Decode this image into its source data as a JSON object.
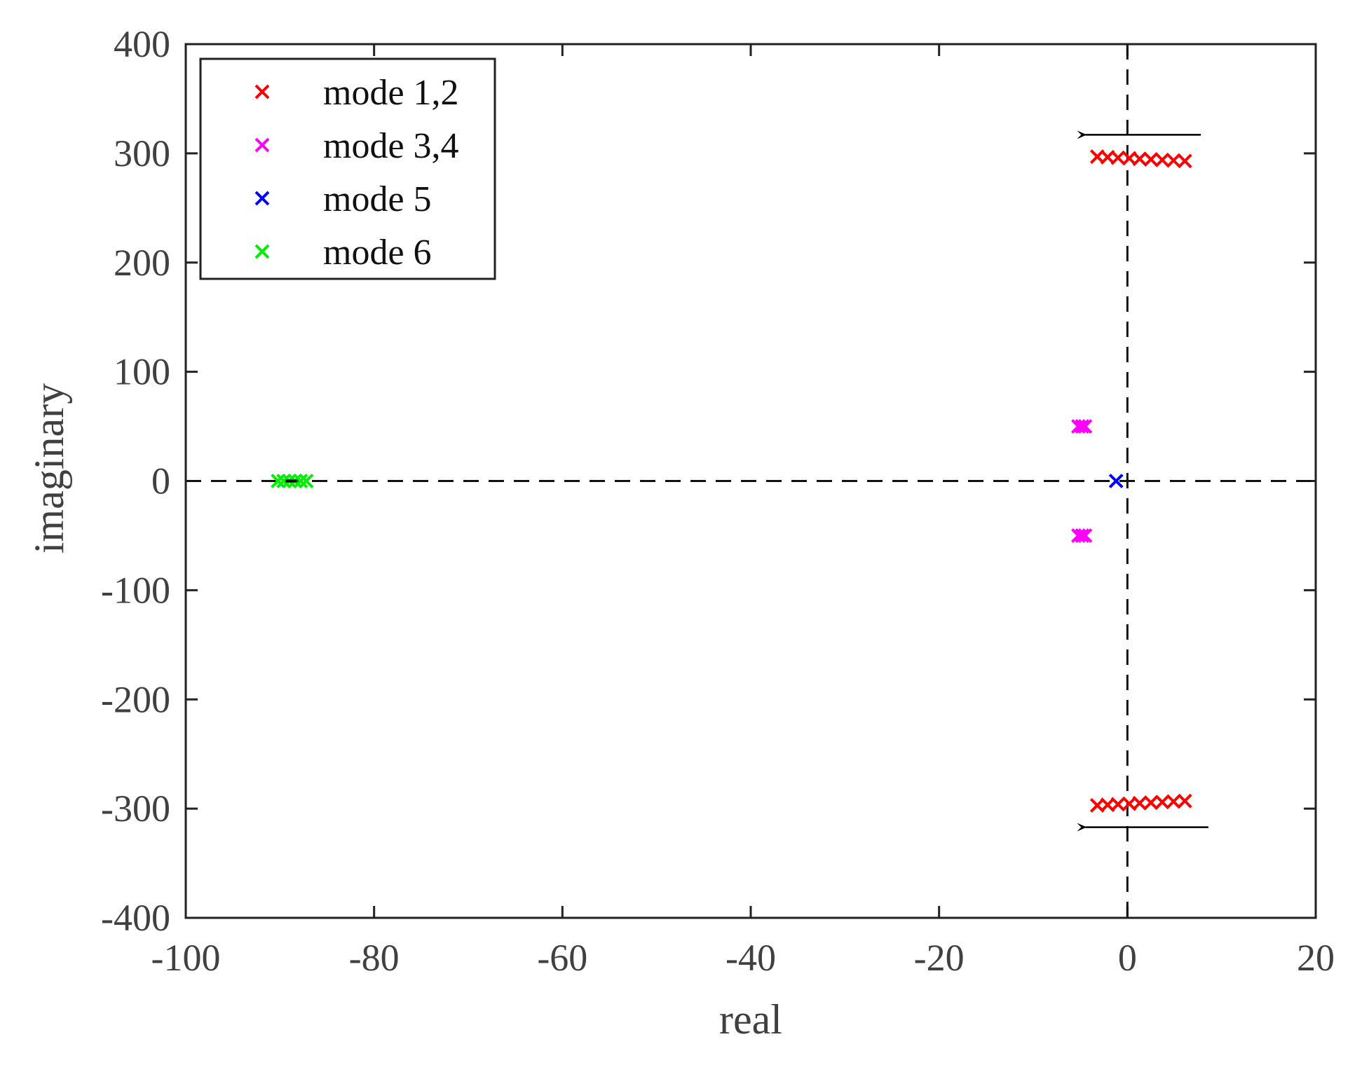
{
  "chart_data": {
    "type": "scatter",
    "xlabel": "real",
    "ylabel": "imaginary",
    "xlim": [
      -100,
      20
    ],
    "ylim": [
      -400,
      400
    ],
    "xticks": [
      "-100",
      "-80",
      "-60",
      "-40",
      "-20",
      "0",
      "20"
    ],
    "yticks": [
      "400",
      "300",
      "200",
      "100",
      "0",
      "-100",
      "-200",
      "-300",
      "-400"
    ],
    "grid": false,
    "legend_position": "top-left",
    "reference_lines": {
      "x": 0,
      "y": 0,
      "style": "dashed"
    },
    "marker": "x",
    "series": [
      {
        "name": "mode 1,2",
        "color": "#ff0000",
        "points": [
          [
            -3.2,
            297
          ],
          [
            -2.1,
            296.5
          ],
          [
            -1,
            296
          ],
          [
            0.2,
            295.5
          ],
          [
            1.3,
            295
          ],
          [
            2.5,
            294.5
          ],
          [
            3.7,
            294
          ],
          [
            4.9,
            293.5
          ],
          [
            6.1,
            293
          ],
          [
            -3.2,
            -297
          ],
          [
            -2.1,
            -296.5
          ],
          [
            -1,
            -296
          ],
          [
            0.2,
            -295.5
          ],
          [
            1.3,
            -295
          ],
          [
            2.5,
            -294.5
          ],
          [
            3.7,
            -294
          ],
          [
            4.9,
            -293.5
          ],
          [
            6.1,
            -293
          ]
        ]
      },
      {
        "name": "mode 3,4",
        "color": "#ff00ff",
        "points": [
          [
            -5.2,
            50
          ],
          [
            -4.8,
            50
          ],
          [
            -4.5,
            50
          ],
          [
            -5.2,
            -50
          ],
          [
            -4.8,
            -50
          ],
          [
            -4.5,
            -50
          ]
        ]
      },
      {
        "name": "mode 5",
        "color": "#0000ff",
        "points": [
          [
            -1.2,
            0
          ]
        ]
      },
      {
        "name": "mode 6",
        "color": "#00ee00",
        "points": [
          [
            -90.2,
            0
          ],
          [
            -89.6,
            0
          ],
          [
            -89.0,
            0
          ],
          [
            -88.4,
            0
          ],
          [
            -87.8,
            0
          ],
          [
            -87.2,
            0
          ]
        ]
      }
    ],
    "arrows": [
      {
        "from": [
          7.8,
          317
        ],
        "to": [
          -5.8,
          317
        ],
        "color": "#000000"
      },
      {
        "from": [
          8.6,
          -317
        ],
        "to": [
          -5.8,
          -317
        ],
        "color": "#000000"
      }
    ]
  }
}
